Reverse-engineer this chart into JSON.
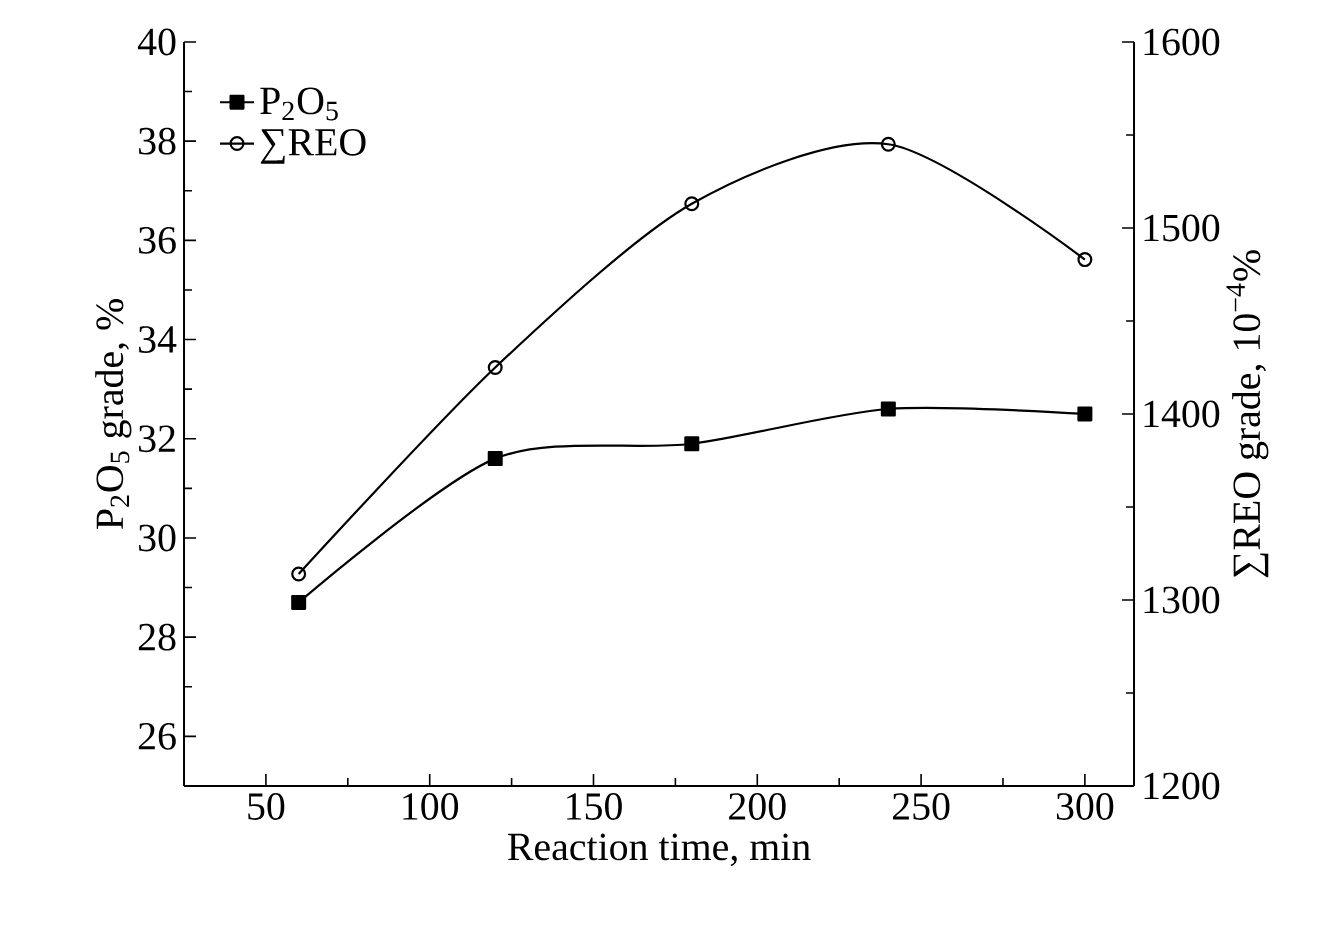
{
  "chart_data": {
    "type": "line",
    "xlabel": "Reaction time, min",
    "ylabel": "P$_{2}$O$_{5}$ grade, %",
    "y2label": "∑REO grade, 10$^{−4}$%",
    "x": [
      60,
      120,
      180,
      240,
      300
    ],
    "series": [
      {
        "name": "P$_{2}$O$_{5}$",
        "color": "#000000",
        "marker": "square",
        "values": [
          28.7,
          31.6,
          31.9,
          32.6,
          32.5
        ]
      },
      {
        "name": "∑REO",
        "color": "#000000",
        "marker": "circle",
        "axis": "y2",
        "values": [
          1314,
          1425,
          1513,
          1545,
          1483
        ]
      }
    ],
    "xlim": [
      25,
      315
    ],
    "xticks": [
      50,
      100,
      150,
      200,
      250,
      300
    ],
    "ylim": [
      25,
      40
    ],
    "yticks": [
      26,
      28,
      30,
      32,
      34,
      36,
      38,
      40
    ],
    "y2lim": [
      1200,
      1600
    ],
    "y2ticks": [
      1200,
      1300,
      1400,
      1500,
      1600
    ],
    "legend": "top left",
    "grid": false,
    "line_style": "solid"
  }
}
